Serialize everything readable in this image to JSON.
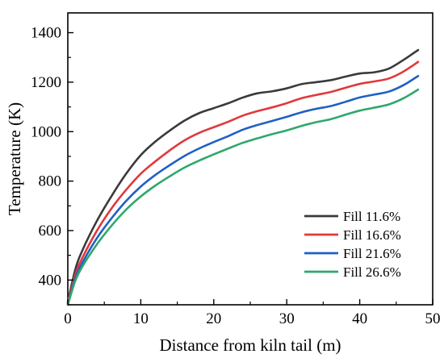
{
  "chart_data": {
    "type": "line",
    "xlabel": "Distance from kiln tail (m)",
    "ylabel": "Temperature (K)",
    "xlim": [
      0,
      50
    ],
    "ylim": [
      300,
      1480
    ],
    "xticks": [
      0,
      10,
      20,
      30,
      40,
      50
    ],
    "yticks": [
      400,
      600,
      800,
      1000,
      1200,
      1400
    ],
    "grid": false,
    "legend_position": "bottom-right",
    "series": [
      {
        "name": "Fill 11.6%",
        "color": "#3a3a3a",
        "x": [
          0,
          1,
          2,
          4,
          6,
          8,
          10,
          12,
          14,
          16,
          18,
          20,
          22,
          24,
          26,
          28,
          30,
          32,
          34,
          36,
          38,
          40,
          42,
          44,
          46,
          48
        ],
        "y": [
          310,
          440,
          520,
          640,
          740,
          830,
          905,
          960,
          1005,
          1045,
          1075,
          1095,
          1115,
          1138,
          1155,
          1163,
          1175,
          1192,
          1200,
          1208,
          1222,
          1235,
          1240,
          1255,
          1290,
          1330
        ]
      },
      {
        "name": "Fill 16.6%",
        "color": "#e0393c",
        "x": [
          0,
          1,
          2,
          4,
          6,
          8,
          10,
          12,
          14,
          16,
          18,
          20,
          22,
          24,
          26,
          28,
          30,
          32,
          34,
          36,
          38,
          40,
          42,
          44,
          46,
          48
        ],
        "y": [
          305,
          420,
          490,
          600,
          690,
          765,
          830,
          880,
          925,
          965,
          995,
          1018,
          1040,
          1065,
          1083,
          1098,
          1115,
          1135,
          1148,
          1160,
          1177,
          1193,
          1203,
          1215,
          1243,
          1282
        ]
      },
      {
        "name": "Fill 21.6%",
        "color": "#1f60c4",
        "x": [
          0,
          1,
          2,
          4,
          6,
          8,
          10,
          12,
          14,
          16,
          18,
          20,
          22,
          24,
          26,
          28,
          30,
          32,
          34,
          36,
          38,
          40,
          42,
          44,
          46,
          48
        ],
        "y": [
          300,
          405,
          470,
          570,
          650,
          720,
          778,
          825,
          865,
          902,
          932,
          958,
          982,
          1008,
          1027,
          1043,
          1060,
          1078,
          1092,
          1103,
          1120,
          1138,
          1150,
          1162,
          1188,
          1225
        ]
      },
      {
        "name": "Fill 26.6%",
        "color": "#2ea86a",
        "x": [
          0,
          1,
          2,
          4,
          6,
          8,
          10,
          12,
          14,
          16,
          18,
          20,
          22,
          24,
          26,
          28,
          30,
          32,
          34,
          36,
          38,
          40,
          42,
          44,
          46,
          48
        ],
        "y": [
          300,
          395,
          455,
          545,
          620,
          685,
          738,
          782,
          820,
          855,
          883,
          908,
          932,
          955,
          973,
          990,
          1005,
          1023,
          1038,
          1050,
          1068,
          1085,
          1097,
          1110,
          1135,
          1170
        ]
      }
    ]
  }
}
